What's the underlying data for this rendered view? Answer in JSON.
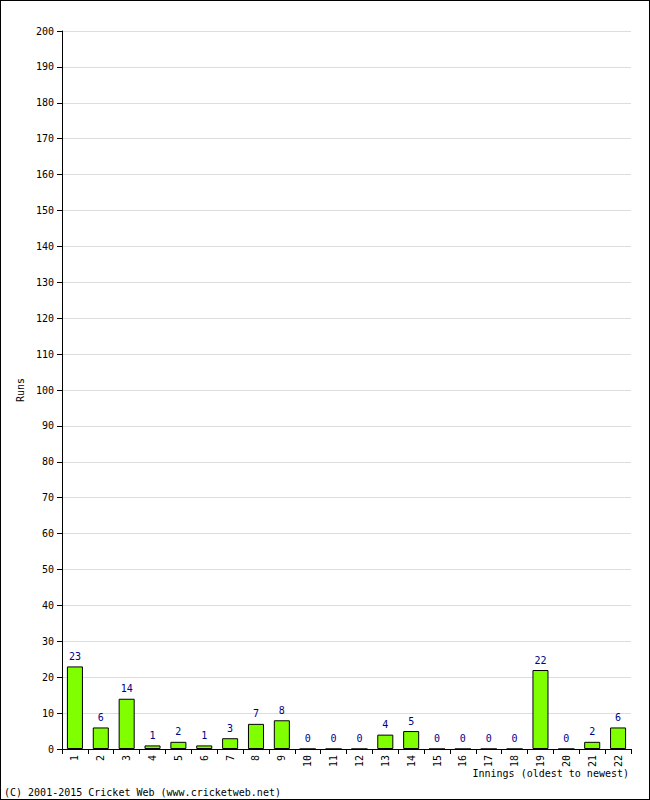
{
  "chart_data": {
    "type": "bar",
    "x_label": "Innings (oldest to newest)",
    "y_label": "Runs",
    "annotations": [
      "(C) 2001-2015 Cricket Web (www.cricketweb.net)"
    ],
    "categories": [
      "1",
      "2",
      "3",
      "4",
      "5",
      "6",
      "7",
      "8",
      "9",
      "10",
      "11",
      "12",
      "13",
      "14",
      "15",
      "16",
      "17",
      "18",
      "19",
      "20",
      "21",
      "22"
    ],
    "values": [
      23,
      6,
      14,
      1,
      2,
      1,
      3,
      7,
      8,
      0,
      0,
      0,
      4,
      5,
      0,
      0,
      0,
      0,
      22,
      0,
      2,
      6
    ],
    "color": "#80ff00",
    "ylim": [
      0,
      200
    ],
    "yticks": [
      0,
      10,
      20,
      30,
      40,
      50,
      60,
      70,
      80,
      90,
      100,
      110,
      120,
      130,
      140,
      150,
      160,
      170,
      180,
      190,
      200
    ],
    "grid": true,
    "data_labels": true
  }
}
